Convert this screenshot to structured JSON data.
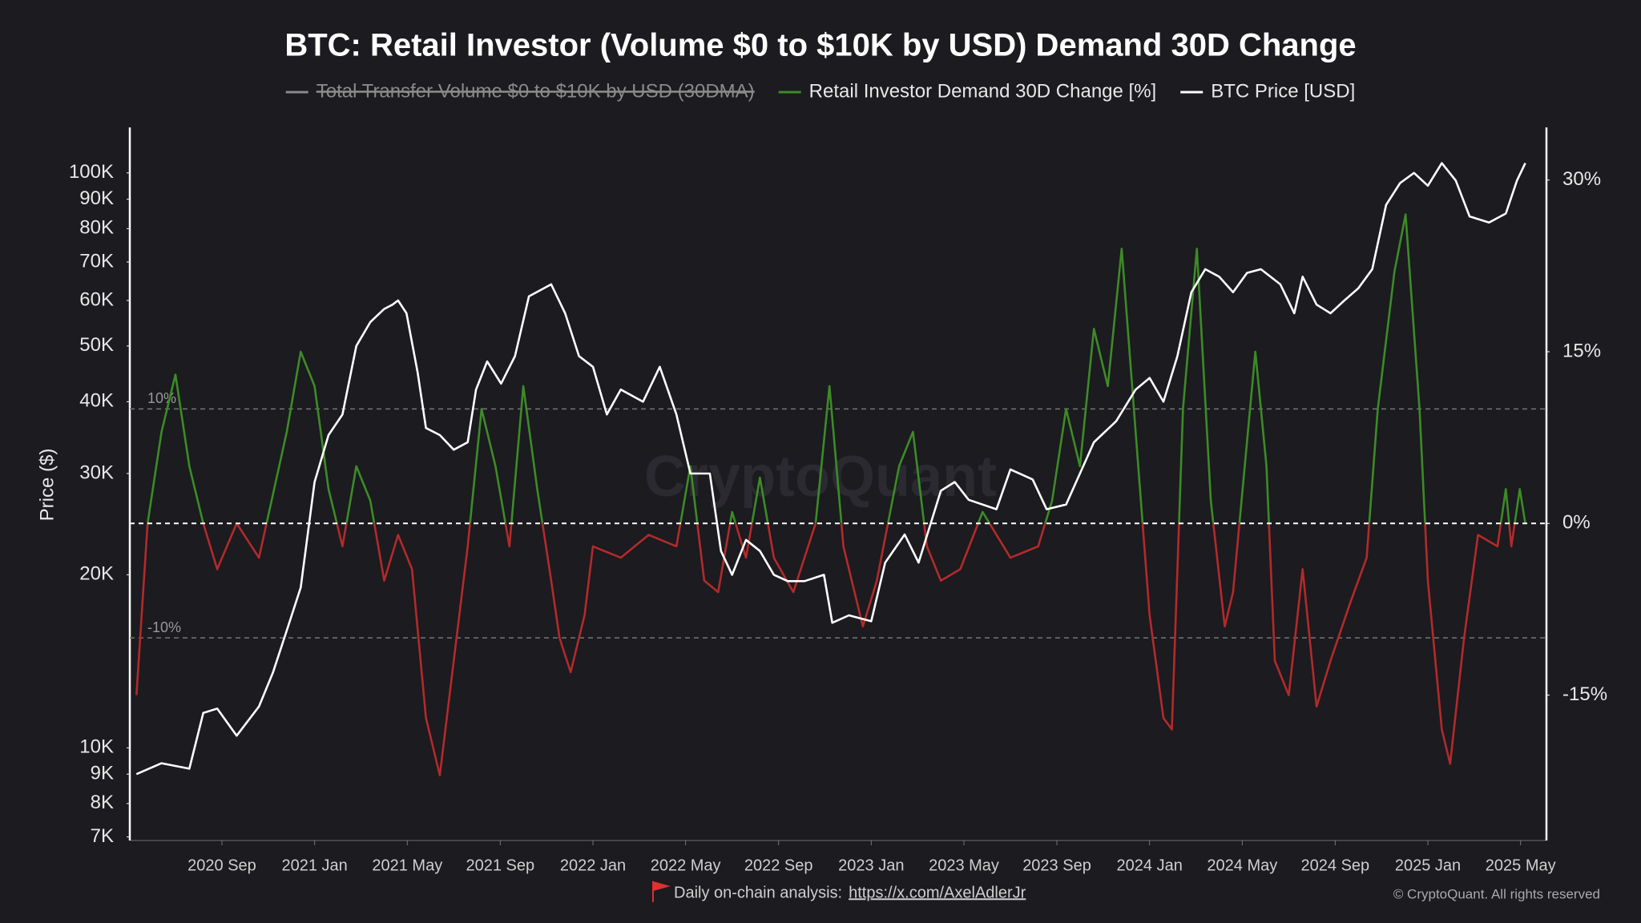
{
  "chart_data": {
    "type": "line",
    "title": "BTC: Retail Investor (Volume $0 to $10K by USD) Demand 30D Change",
    "y_label": "Price ($)",
    "watermark": "CryptoQuant",
    "log_y": true,
    "grid": false,
    "legend": "top",
    "xlim": [
      2020.336,
      2025.426
    ],
    "xticks": [
      {
        "value": 2020.667,
        "label": "2020 Sep"
      },
      {
        "value": 2021.0,
        "label": "2021 Jan"
      },
      {
        "value": 2021.333,
        "label": "2021 May"
      },
      {
        "value": 2021.667,
        "label": "2021 Sep"
      },
      {
        "value": 2022.0,
        "label": "2022 Jan"
      },
      {
        "value": 2022.333,
        "label": "2022 May"
      },
      {
        "value": 2022.667,
        "label": "2022 Sep"
      },
      {
        "value": 2023.0,
        "label": "2023 Jan"
      },
      {
        "value": 2023.333,
        "label": "2023 May"
      },
      {
        "value": 2023.667,
        "label": "2023 Sep"
      },
      {
        "value": 2024.0,
        "label": "2024 Jan"
      },
      {
        "value": 2024.333,
        "label": "2024 May"
      },
      {
        "value": 2024.667,
        "label": "2024 Sep"
      },
      {
        "value": 2025.0,
        "label": "2025 Jan"
      },
      {
        "value": 2025.333,
        "label": "2025 May"
      }
    ],
    "ylim": [
      6900,
      120000
    ],
    "yticks": [
      {
        "value": 7000,
        "label": "7K"
      },
      {
        "value": 8000,
        "label": "8K"
      },
      {
        "value": 9000,
        "label": "9K"
      },
      {
        "value": 10000,
        "label": "10K"
      },
      {
        "value": 20000,
        "label": "20K"
      },
      {
        "value": 30000,
        "label": "30K"
      },
      {
        "value": 40000,
        "label": "40K"
      },
      {
        "value": 50000,
        "label": "50K"
      },
      {
        "value": 60000,
        "label": "60K"
      },
      {
        "value": 70000,
        "label": "70K"
      },
      {
        "value": 80000,
        "label": "80K"
      },
      {
        "value": 90000,
        "label": "90K"
      },
      {
        "value": 100000,
        "label": "100K"
      }
    ],
    "y2lim": [
      -27.7,
      34.6
    ],
    "y2ticks": [
      {
        "value": -15,
        "label": "-15%"
      },
      {
        "value": 0,
        "label": "0%"
      },
      {
        "value": 15,
        "label": "15%"
      },
      {
        "value": 30,
        "label": "30%"
      }
    ],
    "reference_lines": [
      {
        "value": 10,
        "label": "10%"
      },
      {
        "value": -10,
        "label": "-10%"
      }
    ],
    "zero_line": true,
    "series": [
      {
        "name": "Total Transfer Volume $0 to $10K by USD (30DMA)",
        "color": "#8a8a8a",
        "hidden": true
      },
      {
        "name": "Retail Investor Demand 30D Change [%]",
        "color": "#3d8b26",
        "negative_color": "#b32a2a",
        "axis": "y2",
        "x": [
          2020.36,
          2020.4,
          2020.45,
          2020.5,
          2020.55,
          2020.6,
          2020.65,
          2020.72,
          2020.8,
          2020.9,
          2020.95,
          2021.0,
          2021.05,
          2021.1,
          2021.15,
          2021.2,
          2021.25,
          2021.3,
          2021.35,
          2021.4,
          2021.45,
          2021.5,
          2021.55,
          2021.6,
          2021.65,
          2021.7,
          2021.75,
          2021.8,
          2021.85,
          2021.88,
          2021.92,
          2021.97,
          2022.0,
          2022.1,
          2022.2,
          2022.3,
          2022.35,
          2022.4,
          2022.45,
          2022.5,
          2022.55,
          2022.6,
          2022.65,
          2022.72,
          2022.8,
          2022.85,
          2022.9,
          2022.97,
          2023.02,
          2023.1,
          2023.15,
          2023.2,
          2023.25,
          2023.32,
          2023.4,
          2023.5,
          2023.6,
          2023.65,
          2023.7,
          2023.75,
          2023.8,
          2023.85,
          2023.9,
          2023.95,
          2024.0,
          2024.05,
          2024.08,
          2024.12,
          2024.17,
          2024.22,
          2024.27,
          2024.3,
          2024.38,
          2024.42,
          2024.45,
          2024.5,
          2024.55,
          2024.6,
          2024.65,
          2024.72,
          2024.78,
          2024.82,
          2024.88,
          2024.92,
          2024.97,
          2025.0,
          2025.05,
          2025.08,
          2025.13,
          2025.18,
          2025.25,
          2025.28,
          2025.3,
          2025.33,
          2025.35
        ],
        "values": [
          -15,
          0,
          8,
          13,
          5,
          0,
          -4,
          0,
          -3,
          8,
          15,
          12,
          3,
          -2,
          5,
          2,
          -5,
          -1,
          -4,
          -17,
          -22,
          -12,
          -2,
          10,
          5,
          -2,
          12,
          3,
          -5,
          -10,
          -13,
          -8,
          -2,
          -3,
          -1,
          -2,
          5,
          -5,
          -6,
          1,
          -3,
          4,
          -3,
          -6,
          0,
          12,
          -2,
          -9,
          -5,
          5,
          8,
          -2,
          -5,
          -4,
          1,
          -3,
          -2,
          2,
          10,
          5,
          17,
          12,
          24,
          8,
          -8,
          -17,
          -18,
          10,
          24,
          2,
          -9,
          -6,
          15,
          5,
          -12,
          -15,
          -4,
          -16,
          -12,
          -7,
          -3,
          10,
          22,
          27,
          10,
          -5,
          -18,
          -21,
          -10,
          -1,
          -2,
          3,
          -2,
          3,
          0
        ]
      },
      {
        "name": "BTC Price [USD]",
        "color": "#ffffff",
        "x": [
          2020.36,
          2020.45,
          2020.55,
          2020.6,
          2020.65,
          2020.72,
          2020.8,
          2020.85,
          2020.9,
          2020.95,
          2021.0,
          2021.05,
          2021.1,
          2021.15,
          2021.2,
          2021.25,
          2021.28,
          2021.3,
          2021.33,
          2021.37,
          2021.4,
          2021.45,
          2021.5,
          2021.55,
          2021.58,
          2021.62,
          2021.67,
          2021.72,
          2021.77,
          2021.85,
          2021.9,
          2021.95,
          2022.0,
          2022.05,
          2022.1,
          2022.18,
          2022.24,
          2022.3,
          2022.35,
          2022.42,
          2022.46,
          2022.5,
          2022.55,
          2022.6,
          2022.65,
          2022.7,
          2022.76,
          2022.83,
          2022.86,
          2022.92,
          2023.0,
          2023.05,
          2023.12,
          2023.17,
          2023.25,
          2023.3,
          2023.35,
          2023.45,
          2023.5,
          2023.58,
          2023.63,
          2023.7,
          2023.8,
          2023.88,
          2023.95,
          2024.0,
          2024.05,
          2024.1,
          2024.15,
          2024.2,
          2024.25,
          2024.3,
          2024.35,
          2024.4,
          2024.47,
          2024.52,
          2024.55,
          2024.6,
          2024.65,
          2024.7,
          2024.75,
          2024.8,
          2024.85,
          2024.9,
          2024.95,
          2025.0,
          2025.05,
          2025.1,
          2025.15,
          2025.22,
          2025.28,
          2025.32,
          2025.35
        ],
        "values": [
          9000,
          9400,
          9200,
          11500,
          11700,
          10500,
          11800,
          13500,
          16000,
          19000,
          29000,
          35000,
          38000,
          50000,
          55000,
          58000,
          59000,
          60000,
          57000,
          45000,
          36000,
          35000,
          33000,
          34000,
          42000,
          47000,
          43000,
          48000,
          61000,
          64000,
          57000,
          48000,
          46000,
          38000,
          42000,
          40000,
          46000,
          38000,
          30000,
          30000,
          22000,
          20000,
          23000,
          22000,
          20000,
          19500,
          19500,
          20000,
          16500,
          17000,
          16600,
          21000,
          23500,
          21000,
          28000,
          29000,
          27000,
          26000,
          30500,
          29300,
          26000,
          26500,
          34000,
          37000,
          42000,
          44000,
          40000,
          48000,
          62000,
          68000,
          66000,
          62000,
          67000,
          68000,
          64000,
          57000,
          66000,
          59000,
          57000,
          60000,
          63000,
          68000,
          88000,
          96000,
          100000,
          95000,
          104000,
          97000,
          84000,
          82000,
          85000,
          97000,
          104000
        ]
      }
    ],
    "footer": {
      "text": "Daily on-chain analysis:",
      "link": "https://x.com/AxelAdlerJr",
      "copyright": "© CryptoQuant. All rights reserved"
    }
  }
}
